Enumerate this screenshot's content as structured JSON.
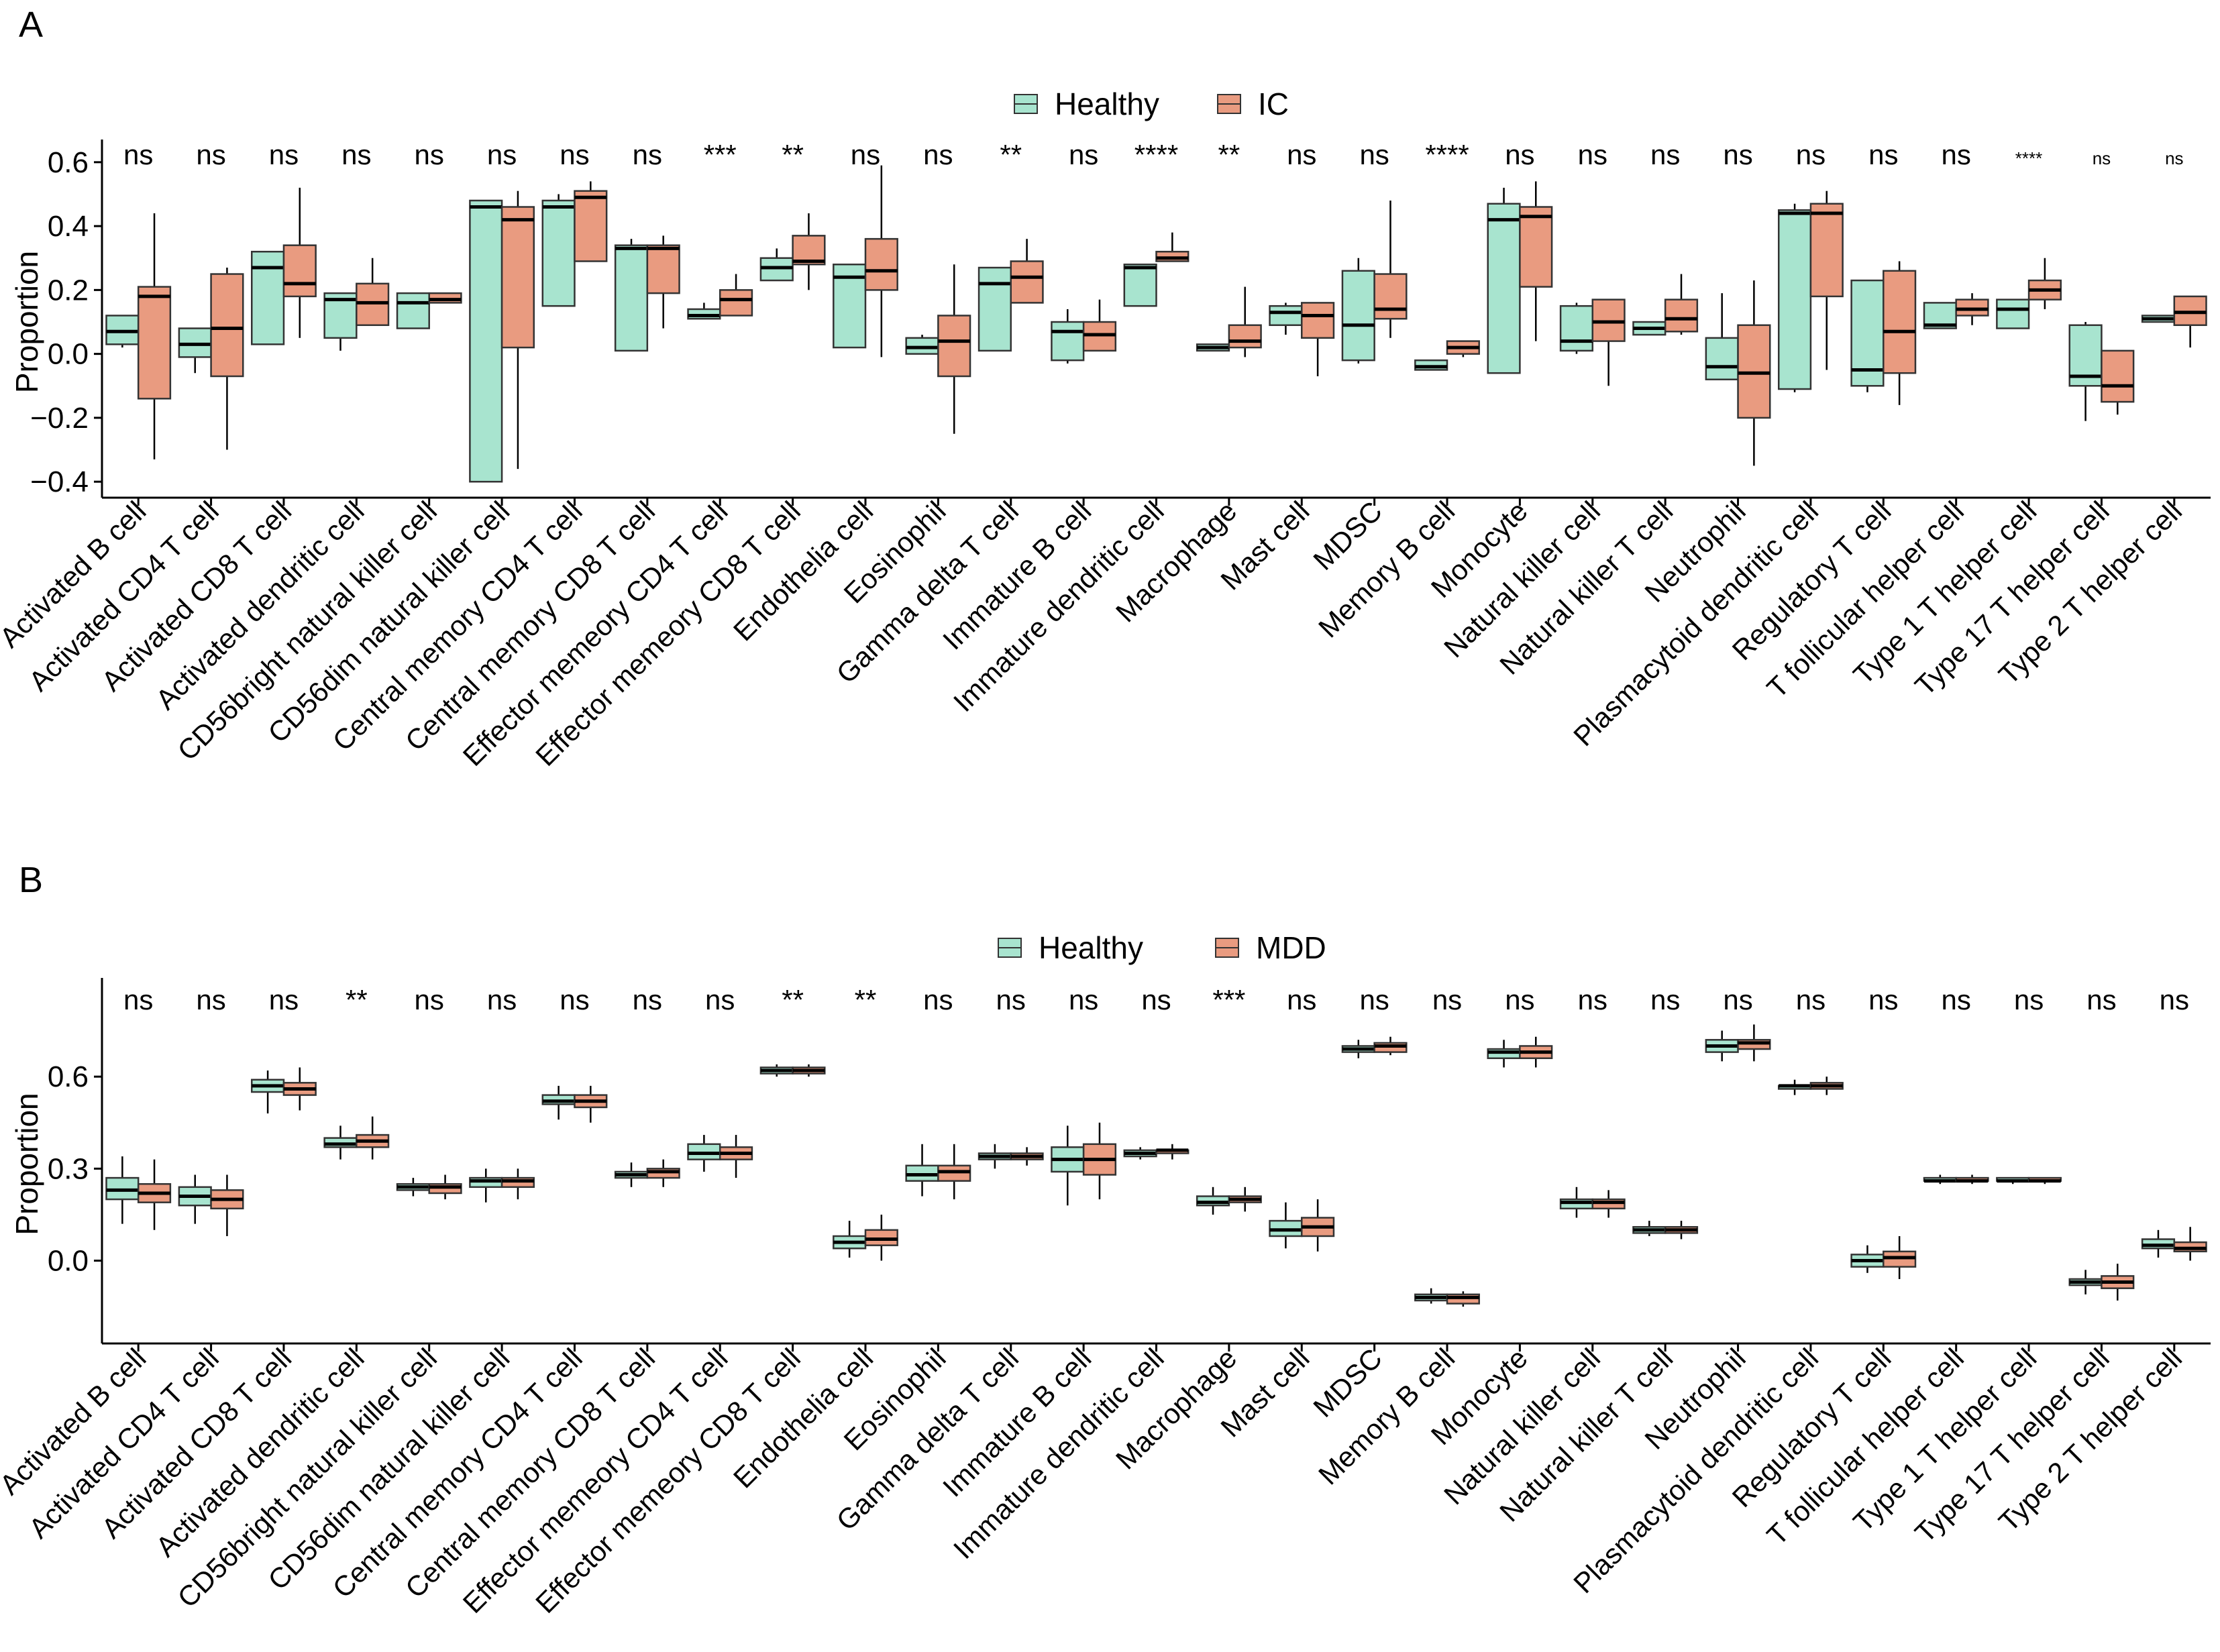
{
  "colors": {
    "healthy": "#a8e4cf",
    "disease": "#e99b80",
    "line": "#000000",
    "outline": "#333333"
  },
  "chart_data": [
    {
      "panel_label": "A",
      "type": "box",
      "ylabel": "Proportion",
      "ylim": [
        -0.45,
        0.65
      ],
      "yticks": [
        -0.4,
        -0.2,
        0.0,
        0.2,
        0.4,
        0.6
      ],
      "ytick_labels": [
        "−0.4",
        "−0.2",
        "0.0",
        "0.2",
        "0.4",
        "0.6"
      ],
      "legend": [
        "Healthy",
        "IC"
      ],
      "categories": [
        "Activated B cell",
        "Activated CD4 T cell",
        "Activated CD8 T cell",
        "Activated dendritic cell",
        "CD56bright natural killer cell",
        "CD56dim natural killer cell",
        "Central memory CD4 T cell",
        "Central memory CD8 T cell",
        "Effector memeory CD4 T cell",
        "Effector memeory CD8 T cell",
        "Endothelia cell",
        "Eosinophil",
        "Gamma delta T cell",
        "Immature  B cell",
        "Immature dendritic cell",
        "Macrophage",
        "Mast cell",
        "MDSC",
        "Memory B cell",
        "Monocyte",
        "Natural killer cell",
        "Natural killer T cell",
        "Neutrophil",
        "Plasmacytoid dendritic cell",
        "Regulatory T cell",
        "T follicular helper cell",
        "Type 1 T helper cell",
        "Type 17 T helper cell",
        "Type 2 T helper cell"
      ],
      "significance": [
        "ns",
        "ns",
        "ns",
        "ns",
        "ns",
        "ns",
        "ns",
        "ns",
        "***",
        "**",
        "ns",
        "ns",
        "**",
        "ns",
        "****",
        "**",
        "ns",
        "ns",
        "****",
        "ns",
        "ns",
        "ns",
        "ns",
        "ns",
        "ns",
        "ns",
        "****",
        "ns",
        "ns"
      ],
      "significance_small": [
        26,
        27,
        28
      ],
      "series": [
        {
          "name": "Healthy",
          "boxes": [
            [
              0.02,
              0.03,
              0.07,
              0.12,
              0.12
            ],
            [
              -0.06,
              -0.01,
              0.03,
              0.08,
              0.08
            ],
            [
              0.03,
              0.03,
              0.27,
              0.32,
              0.32
            ],
            [
              0.01,
              0.05,
              0.17,
              0.19,
              0.19
            ],
            [
              0.08,
              0.08,
              0.16,
              0.19,
              0.19
            ],
            [
              -0.4,
              -0.4,
              0.46,
              0.48,
              0.48
            ],
            [
              0.15,
              0.15,
              0.46,
              0.48,
              0.5
            ],
            [
              0.01,
              0.01,
              0.33,
              0.34,
              0.36
            ],
            [
              0.11,
              0.11,
              0.12,
              0.14,
              0.16
            ],
            [
              0.23,
              0.23,
              0.27,
              0.3,
              0.33
            ],
            [
              0.02,
              0.02,
              0.24,
              0.28,
              0.28
            ],
            [
              0.0,
              0.0,
              0.02,
              0.05,
              0.06
            ],
            [
              0.01,
              0.01,
              0.22,
              0.27,
              0.27
            ],
            [
              -0.03,
              -0.02,
              0.07,
              0.1,
              0.14
            ],
            [
              0.15,
              0.15,
              0.27,
              0.28,
              0.28
            ],
            [
              0.01,
              0.01,
              0.02,
              0.03,
              0.03
            ],
            [
              0.06,
              0.09,
              0.13,
              0.15,
              0.16
            ],
            [
              -0.03,
              -0.02,
              0.09,
              0.26,
              0.3
            ],
            [
              -0.05,
              -0.05,
              -0.04,
              -0.02,
              -0.02
            ],
            [
              -0.06,
              -0.06,
              0.42,
              0.47,
              0.52
            ],
            [
              0.0,
              0.01,
              0.04,
              0.15,
              0.16
            ],
            [
              0.06,
              0.06,
              0.08,
              0.1,
              0.1
            ],
            [
              -0.08,
              -0.08,
              -0.04,
              0.05,
              0.19
            ],
            [
              -0.12,
              -0.11,
              0.44,
              0.45,
              0.47
            ],
            [
              -0.12,
              -0.1,
              -0.05,
              0.23,
              0.23
            ],
            [
              0.08,
              0.08,
              0.09,
              0.16,
              0.16
            ],
            [
              0.08,
              0.08,
              0.14,
              0.17,
              0.17
            ],
            [
              -0.21,
              -0.1,
              -0.07,
              0.09,
              0.1
            ],
            [
              0.1,
              0.1,
              0.11,
              0.12,
              0.12
            ]
          ]
        },
        {
          "name": "IC",
          "boxes": [
            [
              -0.33,
              -0.14,
              0.18,
              0.21,
              0.44
            ],
            [
              -0.3,
              -0.07,
              0.08,
              0.25,
              0.27
            ],
            [
              0.05,
              0.18,
              0.22,
              0.34,
              0.52
            ],
            [
              0.09,
              0.09,
              0.16,
              0.22,
              0.3
            ],
            [
              0.16,
              0.16,
              0.17,
              0.19,
              0.19
            ],
            [
              -0.36,
              0.02,
              0.42,
              0.46,
              0.51
            ],
            [
              0.29,
              0.29,
              0.49,
              0.51,
              0.54
            ],
            [
              0.08,
              0.19,
              0.33,
              0.34,
              0.37
            ],
            [
              0.12,
              0.12,
              0.17,
              0.2,
              0.25
            ],
            [
              0.2,
              0.28,
              0.29,
              0.37,
              0.44
            ],
            [
              -0.01,
              0.2,
              0.26,
              0.36,
              0.59
            ],
            [
              -0.25,
              -0.07,
              0.04,
              0.12,
              0.28
            ],
            [
              0.16,
              0.16,
              0.24,
              0.29,
              0.36
            ],
            [
              0.01,
              0.01,
              0.06,
              0.1,
              0.17
            ],
            [
              0.29,
              0.29,
              0.3,
              0.32,
              0.38
            ],
            [
              -0.01,
              0.02,
              0.04,
              0.09,
              0.21
            ],
            [
              -0.07,
              0.05,
              0.12,
              0.16,
              0.16
            ],
            [
              0.05,
              0.11,
              0.14,
              0.25,
              0.48
            ],
            [
              -0.01,
              0.0,
              0.02,
              0.04,
              0.04
            ],
            [
              0.04,
              0.21,
              0.43,
              0.46,
              0.54
            ],
            [
              -0.1,
              0.04,
              0.1,
              0.17,
              0.17
            ],
            [
              0.06,
              0.07,
              0.11,
              0.17,
              0.25
            ],
            [
              -0.35,
              -0.2,
              -0.06,
              0.09,
              0.23
            ],
            [
              -0.05,
              0.18,
              0.44,
              0.47,
              0.51
            ],
            [
              -0.16,
              -0.06,
              0.07,
              0.26,
              0.29
            ],
            [
              0.09,
              0.12,
              0.14,
              0.17,
              0.19
            ],
            [
              0.14,
              0.17,
              0.2,
              0.23,
              0.3
            ],
            [
              -0.19,
              -0.15,
              -0.1,
              0.01,
              0.01
            ],
            [
              0.02,
              0.09,
              0.13,
              0.18,
              0.18
            ]
          ]
        }
      ]
    },
    {
      "panel_label": "B",
      "type": "box",
      "ylabel": "Proportion",
      "ylim": [
        -0.27,
        0.9
      ],
      "yticks": [
        0.0,
        0.3,
        0.6
      ],
      "ytick_labels": [
        "0.0",
        "0.3",
        "0.6"
      ],
      "legend": [
        "Healthy",
        "MDD"
      ],
      "categories": [
        "Activated B cell",
        "Activated CD4 T cell",
        "Activated CD8 T cell",
        "Activated dendritic cell",
        "CD56bright natural killer cell",
        "CD56dim natural killer cell",
        "Central memory CD4 T cell",
        "Central memory CD8 T cell",
        "Effector memeory CD4 T cell",
        "Effector memeory CD8 T cell",
        "Endothelia cell",
        "Eosinophil",
        "Gamma delta T cell",
        "Immature  B cell",
        "Immature dendritic cell",
        "Macrophage",
        "Mast cell",
        "MDSC",
        "Memory B cell",
        "Monocyte",
        "Natural killer cell",
        "Natural killer T cell",
        "Neutrophil",
        "Plasmacytoid dendritic cell",
        "Regulatory T cell",
        "T follicular helper cell",
        "Type 1 T helper cell",
        "Type 17 T helper cell",
        "Type 2 T helper cell"
      ],
      "significance": [
        "ns",
        "ns",
        "ns",
        "**",
        "ns",
        "ns",
        "ns",
        "ns",
        "ns",
        "**",
        "**",
        "ns",
        "ns",
        "ns",
        "ns",
        "***",
        "ns",
        "ns",
        "ns",
        "ns",
        "ns",
        "ns",
        "ns",
        "ns",
        "ns",
        "ns",
        "ns",
        "ns",
        "ns"
      ],
      "significance_small": [],
      "series": [
        {
          "name": "Healthy",
          "boxes": [
            [
              0.12,
              0.2,
              0.23,
              0.27,
              0.34
            ],
            [
              0.12,
              0.18,
              0.21,
              0.24,
              0.28
            ],
            [
              0.48,
              0.55,
              0.57,
              0.59,
              0.62
            ],
            [
              0.33,
              0.37,
              0.38,
              0.4,
              0.44
            ],
            [
              0.21,
              0.23,
              0.24,
              0.25,
              0.27
            ],
            [
              0.19,
              0.24,
              0.26,
              0.27,
              0.3
            ],
            [
              0.46,
              0.51,
              0.52,
              0.54,
              0.57
            ],
            [
              0.24,
              0.27,
              0.28,
              0.29,
              0.32
            ],
            [
              0.29,
              0.33,
              0.35,
              0.38,
              0.41
            ],
            [
              0.6,
              0.61,
              0.62,
              0.63,
              0.64
            ],
            [
              0.01,
              0.04,
              0.06,
              0.08,
              0.13
            ],
            [
              0.21,
              0.26,
              0.28,
              0.31,
              0.38
            ],
            [
              0.3,
              0.33,
              0.34,
              0.35,
              0.38
            ],
            [
              0.18,
              0.29,
              0.33,
              0.37,
              0.44
            ],
            [
              0.33,
              0.34,
              0.35,
              0.36,
              0.37
            ],
            [
              0.15,
              0.18,
              0.19,
              0.21,
              0.24
            ],
            [
              0.04,
              0.08,
              0.1,
              0.13,
              0.19
            ],
            [
              0.66,
              0.68,
              0.69,
              0.7,
              0.72
            ],
            [
              -0.14,
              -0.13,
              -0.12,
              -0.11,
              -0.09
            ],
            [
              0.63,
              0.66,
              0.68,
              0.69,
              0.72
            ],
            [
              0.14,
              0.17,
              0.19,
              0.2,
              0.24
            ],
            [
              0.08,
              0.09,
              0.1,
              0.11,
              0.13
            ],
            [
              0.65,
              0.68,
              0.7,
              0.72,
              0.75
            ],
            [
              0.54,
              0.56,
              0.57,
              0.57,
              0.59
            ],
            [
              -0.04,
              -0.02,
              0.0,
              0.02,
              0.05
            ],
            [
              0.25,
              0.26,
              0.26,
              0.27,
              0.28
            ],
            [
              0.25,
              0.26,
              0.26,
              0.27,
              0.27
            ],
            [
              -0.11,
              -0.08,
              -0.07,
              -0.06,
              -0.03
            ],
            [
              0.01,
              0.04,
              0.05,
              0.07,
              0.1
            ]
          ]
        },
        {
          "name": "MDD",
          "boxes": [
            [
              0.1,
              0.19,
              0.22,
              0.25,
              0.33
            ],
            [
              0.08,
              0.17,
              0.2,
              0.23,
              0.28
            ],
            [
              0.49,
              0.54,
              0.56,
              0.58,
              0.63
            ],
            [
              0.33,
              0.37,
              0.39,
              0.41,
              0.47
            ],
            [
              0.2,
              0.22,
              0.24,
              0.25,
              0.28
            ],
            [
              0.2,
              0.24,
              0.26,
              0.27,
              0.3
            ],
            [
              0.45,
              0.5,
              0.52,
              0.54,
              0.57
            ],
            [
              0.24,
              0.27,
              0.29,
              0.3,
              0.33
            ],
            [
              0.27,
              0.33,
              0.35,
              0.37,
              0.41
            ],
            [
              0.6,
              0.61,
              0.62,
              0.63,
              0.64
            ],
            [
              0.0,
              0.05,
              0.07,
              0.1,
              0.15
            ],
            [
              0.2,
              0.26,
              0.29,
              0.31,
              0.38
            ],
            [
              0.31,
              0.33,
              0.34,
              0.35,
              0.37
            ],
            [
              0.2,
              0.28,
              0.33,
              0.38,
              0.45
            ],
            [
              0.33,
              0.35,
              0.36,
              0.36,
              0.38
            ],
            [
              0.16,
              0.19,
              0.2,
              0.21,
              0.24
            ],
            [
              0.03,
              0.08,
              0.11,
              0.14,
              0.2
            ],
            [
              0.67,
              0.68,
              0.7,
              0.71,
              0.73
            ],
            [
              -0.15,
              -0.14,
              -0.12,
              -0.11,
              -0.1
            ],
            [
              0.63,
              0.66,
              0.68,
              0.7,
              0.73
            ],
            [
              0.14,
              0.17,
              0.19,
              0.2,
              0.23
            ],
            [
              0.07,
              0.09,
              0.1,
              0.11,
              0.13
            ],
            [
              0.65,
              0.69,
              0.71,
              0.72,
              0.77
            ],
            [
              0.54,
              0.56,
              0.57,
              0.58,
              0.6
            ],
            [
              -0.06,
              -0.02,
              0.01,
              0.03,
              0.08
            ],
            [
              0.25,
              0.26,
              0.26,
              0.27,
              0.28
            ],
            [
              0.25,
              0.26,
              0.26,
              0.27,
              0.27
            ],
            [
              -0.13,
              -0.09,
              -0.07,
              -0.05,
              -0.01
            ],
            [
              0.0,
              0.03,
              0.04,
              0.06,
              0.11
            ]
          ]
        }
      ]
    }
  ]
}
